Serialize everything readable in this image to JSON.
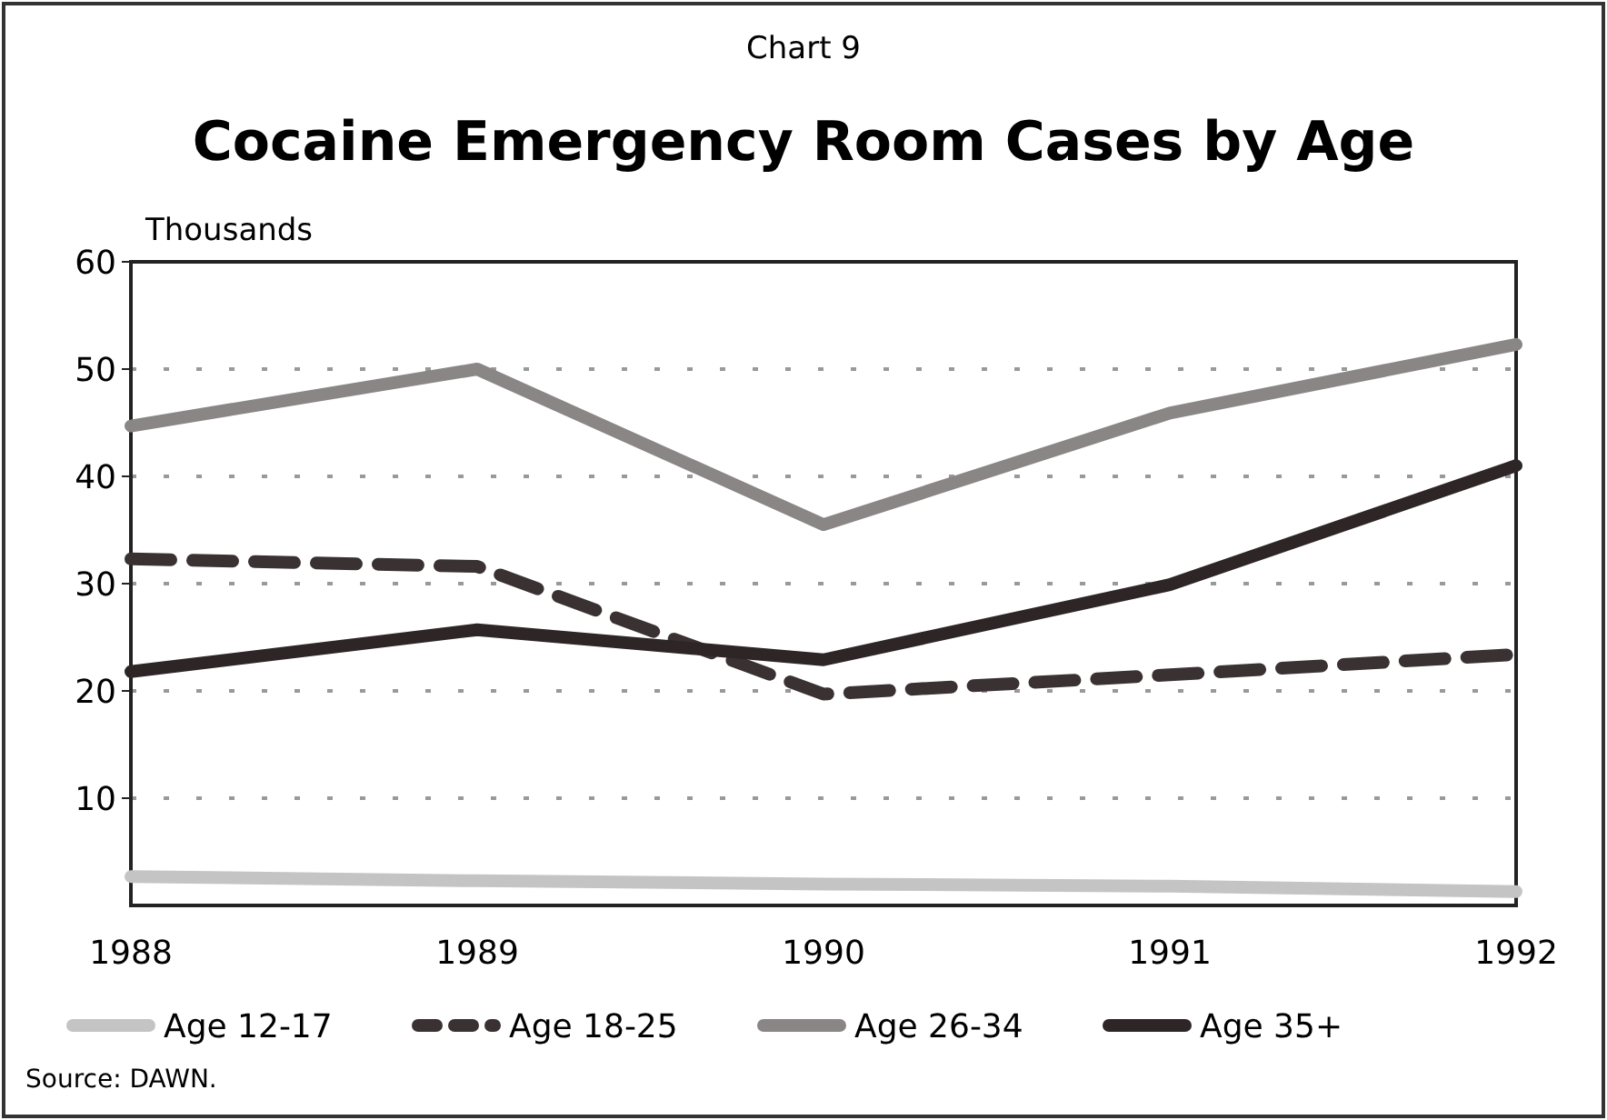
{
  "chart_data": {
    "type": "line",
    "subtitle": "Chart 9",
    "title": "Cocaine Emergency Room Cases by Age",
    "ylabel": "Thousands",
    "x": [
      1988,
      1989,
      1990,
      1991,
      1992
    ],
    "xlim": [
      1988,
      1992
    ],
    "xticks": [
      1988,
      1989,
      1990,
      1991,
      1992
    ],
    "ylim": [
      0,
      60
    ],
    "yticks": [
      10,
      20,
      30,
      40,
      50,
      60
    ],
    "grid": "y",
    "legend": "bottom",
    "series": [
      {
        "name": "Age 12-17",
        "color": "#c4c4c4",
        "values": [
          2.7,
          2.3,
          2.0,
          1.8,
          1.3
        ]
      },
      {
        "name": "Age 18-25",
        "color": "#3a3232",
        "line_style": "dashed",
        "values": [
          32.3,
          31.6,
          19.7,
          21.5,
          23.4
        ]
      },
      {
        "name": "Age 26-34",
        "color": "#8a8686",
        "values": [
          44.7,
          50,
          35.5,
          45.9,
          52.3
        ]
      },
      {
        "name": "Age 35+",
        "color": "#2e2626",
        "values": [
          21.8,
          25.7,
          22.9,
          29.9,
          41
        ]
      }
    ],
    "annotations": [
      "Source: DAWN."
    ]
  }
}
